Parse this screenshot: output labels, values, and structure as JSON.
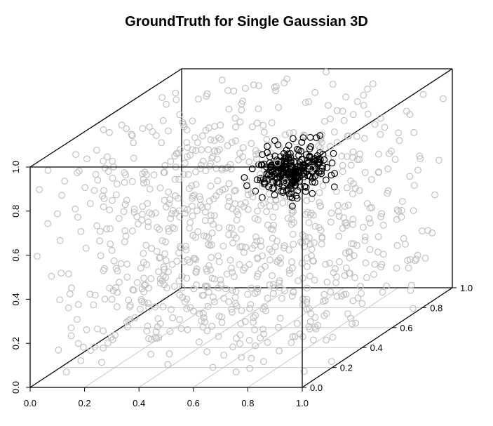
{
  "title": "GroundTruth for Single Gaussian 3D",
  "chart_data": {
    "type": "scatter",
    "title": "GroundTruth for Single Gaussian 3D",
    "xlabel": "",
    "ylabel": "",
    "zlabel": "",
    "xlim": [
      0.0,
      1.0
    ],
    "ylim": [
      0.0,
      1.0
    ],
    "zlim": [
      0.0,
      1.0
    ],
    "x_ticks": [
      "0.0",
      "0.2",
      "0.4",
      "0.6",
      "0.8",
      "1.0"
    ],
    "y_ticks": [
      "0.0",
      "0.2",
      "0.4",
      "0.6",
      "0.8",
      "1.0"
    ],
    "z_ticks": [
      "0.0",
      "0.2",
      "0.4",
      "0.6",
      "0.8",
      "1.0"
    ],
    "projection": "perspective-3d-box",
    "floor_grid": true,
    "series": [
      {
        "name": "",
        "color": "#c0c0c0",
        "marker": "open-circle",
        "distribution": "uniform",
        "n": 900,
        "center": [
          0.5,
          0.5,
          0.5
        ],
        "spread": [
          1.0,
          1.0,
          1.0
        ]
      },
      {
        "name": "",
        "color": "#000000",
        "marker": "open-circle",
        "distribution": "gaussian",
        "n": 280,
        "center": [
          0.8,
          0.3,
          0.85
        ],
        "spread": [
          0.05,
          0.05,
          0.05
        ]
      }
    ]
  }
}
